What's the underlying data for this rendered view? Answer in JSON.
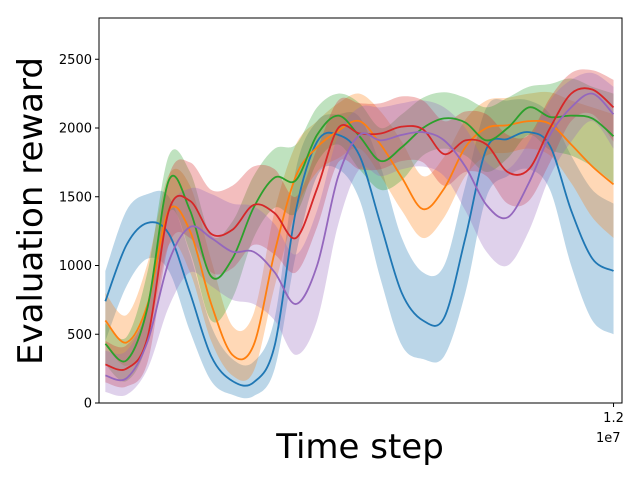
{
  "chart_data": {
    "type": "line",
    "title": "",
    "xlabel": "Time step",
    "ylabel": "Evaluation reward",
    "x_offset_label": "1e7",
    "xlim": [
      -0.15,
      12.2
    ],
    "ylim": [
      0,
      2800
    ],
    "x_ticks": [
      {
        "value": 12,
        "label": "1.2"
      }
    ],
    "y_ticks": [
      {
        "value": 0,
        "label": "0"
      },
      {
        "value": 500,
        "label": "500"
      },
      {
        "value": 1000,
        "label": "1000"
      },
      {
        "value": 1500,
        "label": "1500"
      },
      {
        "value": 2000,
        "label": "2000"
      },
      {
        "value": 2500,
        "label": "2500"
      }
    ],
    "grid": false,
    "legend": "none",
    "x": [
      0,
      0.5,
      1,
      1.5,
      2,
      2.5,
      3,
      3.5,
      4,
      4.5,
      5,
      5.5,
      6,
      6.5,
      7,
      7.5,
      8,
      8.5,
      9,
      9.5,
      10,
      10.5,
      11,
      11.5,
      12
    ],
    "series": [
      {
        "color": "#1f77b4",
        "values": [
          740,
          1150,
          1310,
          1230,
          800,
          340,
          160,
          150,
          420,
          1400,
          1900,
          1950,
          1800,
          1300,
          800,
          600,
          620,
          1200,
          1850,
          1920,
          1970,
          1870,
          1400,
          1050,
          960
        ],
        "lower": [
          450,
          850,
          1050,
          960,
          520,
          160,
          60,
          50,
          250,
          1080,
          1650,
          1700,
          1480,
          900,
          420,
          320,
          340,
          800,
          1500,
          1650,
          1700,
          1550,
          1000,
          600,
          500
        ],
        "upper": [
          960,
          1400,
          1520,
          1500,
          1080,
          560,
          320,
          300,
          620,
          1700,
          2050,
          2100,
          2080,
          1720,
          1200,
          950,
          1000,
          1580,
          2150,
          2200,
          2200,
          2100,
          1800,
          1550,
          1450
        ]
      },
      {
        "color": "#ff7f0e",
        "values": [
          600,
          440,
          720,
          1400,
          1250,
          720,
          350,
          420,
          1100,
          1650,
          1860,
          1980,
          2050,
          1880,
          1640,
          1410,
          1560,
          1860,
          2000,
          2020,
          2050,
          2030,
          1880,
          1720,
          1590
        ],
        "lower": [
          420,
          270,
          460,
          1150,
          950,
          450,
          200,
          230,
          850,
          1400,
          1680,
          1780,
          1850,
          1650,
          1400,
          1200,
          1350,
          1650,
          1800,
          1820,
          1850,
          1800,
          1600,
          1350,
          1200
        ],
        "upper": [
          800,
          640,
          1020,
          1660,
          1580,
          1040,
          560,
          650,
          1400,
          1880,
          2050,
          2180,
          2250,
          2120,
          1900,
          1650,
          1790,
          2060,
          2200,
          2220,
          2250,
          2260,
          2200,
          2150,
          2100
        ]
      },
      {
        "color": "#2ca02c",
        "values": [
          430,
          310,
          700,
          1620,
          1400,
          920,
          1050,
          1420,
          1640,
          1620,
          1950,
          2090,
          1940,
          1760,
          1860,
          2000,
          2070,
          2040,
          1910,
          2000,
          2150,
          2080,
          2090,
          2070,
          1940
        ],
        "lower": [
          280,
          160,
          460,
          1380,
          1100,
          600,
          760,
          1200,
          1420,
          1380,
          1750,
          1880,
          1700,
          1550,
          1620,
          1800,
          1850,
          1800,
          1680,
          1780,
          1950,
          1840,
          1800,
          1720,
          1600
        ],
        "upper": [
          580,
          480,
          960,
          1800,
          1680,
          1220,
          1320,
          1650,
          1850,
          1880,
          2150,
          2250,
          2180,
          2000,
          2100,
          2220,
          2260,
          2220,
          2150,
          2220,
          2300,
          2320,
          2360,
          2300,
          2250
        ]
      },
      {
        "color": "#d62728",
        "values": [
          280,
          250,
          480,
          1400,
          1470,
          1230,
          1260,
          1440,
          1380,
          1200,
          1560,
          2000,
          1960,
          1960,
          2010,
          1990,
          1810,
          1910,
          1880,
          1680,
          1700,
          2000,
          2250,
          2280,
          2150
        ],
        "lower": [
          150,
          120,
          300,
          1150,
          1200,
          950,
          980,
          1150,
          1080,
          950,
          1280,
          1750,
          1700,
          1700,
          1760,
          1750,
          1580,
          1680,
          1650,
          1450,
          1470,
          1750,
          2050,
          2100,
          1900
        ],
        "upper": [
          450,
          420,
          720,
          1650,
          1750,
          1550,
          1580,
          1720,
          1700,
          1500,
          1850,
          2200,
          2180,
          2180,
          2230,
          2200,
          2050,
          2120,
          2100,
          1950,
          1950,
          2220,
          2400,
          2420,
          2350
        ]
      },
      {
        "color": "#9467bd",
        "values": [
          200,
          180,
          450,
          1030,
          1280,
          1200,
          1100,
          1100,
          950,
          720,
          1000,
          1650,
          1950,
          1910,
          1950,
          1970,
          1910,
          1720,
          1440,
          1350,
          1600,
          1950,
          2150,
          2250,
          2100
        ],
        "lower": [
          80,
          60,
          250,
          700,
          950,
          850,
          750,
          720,
          600,
          350,
          600,
          1300,
          1700,
          1650,
          1700,
          1720,
          1650,
          1400,
          1100,
          1000,
          1250,
          1650,
          1900,
          2050,
          1850
        ],
        "upper": [
          380,
          380,
          700,
          1400,
          1560,
          1520,
          1450,
          1430,
          1300,
          1080,
          1400,
          1950,
          2150,
          2150,
          2180,
          2200,
          2150,
          2000,
          1750,
          1700,
          1900,
          2200,
          2350,
          2400,
          2300
        ]
      }
    ]
  }
}
